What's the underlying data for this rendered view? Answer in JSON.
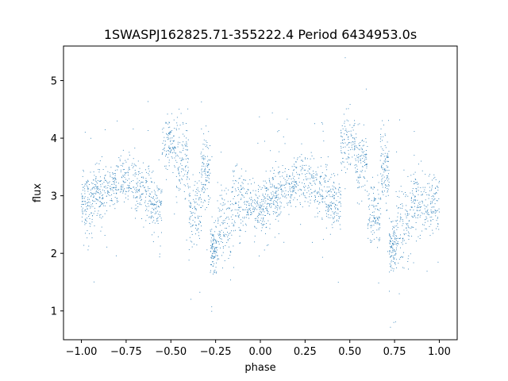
{
  "chart_data": {
    "type": "scatter",
    "title": "1SWASPJ162825.71-355222.4 Period 6434953.0s",
    "xlabel": "phase",
    "ylabel": "flux",
    "xlim": [
      -1.1,
      1.1
    ],
    "ylim": [
      0.5,
      5.6
    ],
    "xticks": [
      -1.0,
      -0.75,
      -0.5,
      -0.25,
      0.0,
      0.25,
      0.5,
      0.75,
      1.0
    ],
    "xtick_labels": [
      "−1.00",
      "−0.75",
      "−0.50",
      "−0.25",
      "0.00",
      "0.25",
      "0.50",
      "0.75",
      "1.00"
    ],
    "yticks": [
      1,
      2,
      3,
      4,
      5
    ],
    "ytick_labels": [
      "1",
      "2",
      "3",
      "4",
      "5"
    ],
    "grid": false,
    "color": "#1f77b4",
    "phase_range": [
      -1.0,
      1.0
    ],
    "segments_one_period": [
      {
        "phase": [
          0.0,
          0.06
        ],
        "flux": 2.9,
        "spread": 0.25
      },
      {
        "phase": [
          0.06,
          0.12
        ],
        "flux": 3.0,
        "spread": 0.25
      },
      {
        "phase": [
          0.12,
          0.2
        ],
        "flux": 3.15,
        "spread": 0.2
      },
      {
        "phase": [
          0.2,
          0.3
        ],
        "flux": 3.3,
        "spread": 0.22
      },
      {
        "phase": [
          0.3,
          0.38
        ],
        "flux": 3.1,
        "spread": 0.25
      },
      {
        "phase": [
          0.38,
          0.45
        ],
        "flux": 2.9,
        "spread": 0.25
      },
      {
        "phase": [
          0.45,
          0.53
        ],
        "flux": 3.9,
        "spread": 0.25
      },
      {
        "phase": [
          0.53,
          0.6
        ],
        "flux": 3.6,
        "spread": 0.3
      },
      {
        "phase": [
          0.6,
          0.67
        ],
        "flux": 2.7,
        "spread": 0.3
      },
      {
        "phase": [
          0.67,
          0.72
        ],
        "flux": 3.4,
        "spread": 0.3
      },
      {
        "phase": [
          0.72,
          0.76
        ],
        "flux": 2.1,
        "spread": 0.2
      },
      {
        "phase": [
          0.76,
          0.84
        ],
        "flux": 2.5,
        "spread": 0.35
      },
      {
        "phase": [
          0.84,
          0.92
        ],
        "flux": 2.9,
        "spread": 0.3
      },
      {
        "phase": [
          0.92,
          1.0
        ],
        "flux": 2.85,
        "spread": 0.25
      }
    ]
  }
}
